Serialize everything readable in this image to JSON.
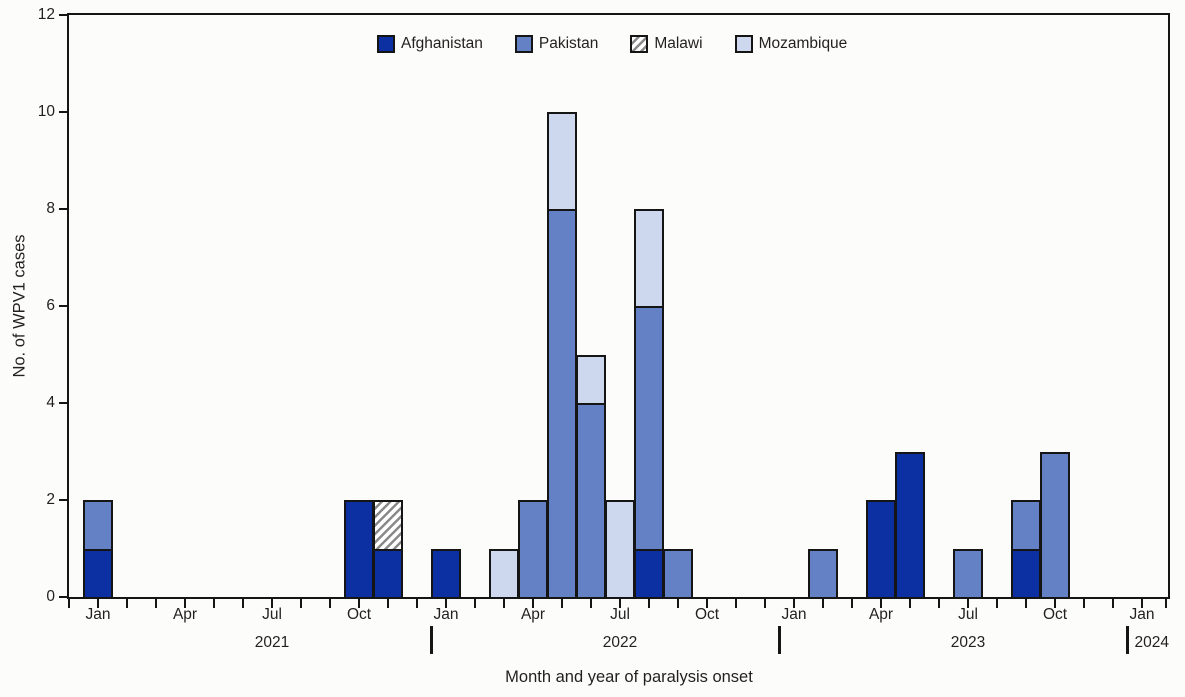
{
  "chart_data": {
    "type": "stacked-bar",
    "ylabel": "No. of WPV1 cases",
    "xlabel": "Month and year of paralysis onset",
    "ylim": [
      0,
      12
    ],
    "yticks": [
      0,
      2,
      4,
      6,
      8,
      10,
      12
    ],
    "grid": false,
    "legend_position": "top-center",
    "background_color": "#fcfdfa",
    "axis_color": "#151515",
    "x_axis": {
      "start_month": "Jan 2021",
      "end_month": "Jan 2024",
      "months_total": 37,
      "month_tick_labels": [
        "Jan",
        "Apr",
        "Jul",
        "Oct"
      ]
    },
    "years": [
      {
        "label": "2021",
        "center_month_index": 6
      },
      {
        "label": "2022",
        "center_month_index": 18
      },
      {
        "label": "2023",
        "center_month_index": 30
      },
      {
        "label": "2024",
        "after_boundary": 36
      }
    ],
    "year_boundaries": [
      12,
      24,
      36
    ],
    "series": [
      {
        "name": "Afghanistan",
        "color": "#0c30a2",
        "pattern": "solid"
      },
      {
        "name": "Pakistan",
        "color": "#6381c4",
        "pattern": "solid"
      },
      {
        "name": "Malawi",
        "color": "#ffffff",
        "pattern": "diagonal-hatch",
        "hatch_color": "#8a8a8a"
      },
      {
        "name": "Mozambique",
        "color": "#cdd7ed",
        "pattern": "solid"
      }
    ],
    "bars": [
      {
        "month": "Jan 2021",
        "month_index": 0,
        "values": {
          "Afghanistan": 1,
          "Pakistan": 1
        }
      },
      {
        "month": "Oct 2021",
        "month_index": 9,
        "values": {
          "Afghanistan": 2
        }
      },
      {
        "month": "Nov 2021",
        "month_index": 10,
        "values": {
          "Afghanistan": 1,
          "Malawi": 1
        }
      },
      {
        "month": "Jan 2022",
        "month_index": 12,
        "values": {
          "Afghanistan": 1
        }
      },
      {
        "month": "Mar 2022",
        "month_index": 14,
        "values": {
          "Mozambique": 1
        }
      },
      {
        "month": "Apr 2022",
        "month_index": 15,
        "values": {
          "Pakistan": 2
        }
      },
      {
        "month": "May 2022",
        "month_index": 16,
        "values": {
          "Pakistan": 8,
          "Mozambique": 2
        }
      },
      {
        "month": "Jun 2022",
        "month_index": 17,
        "values": {
          "Pakistan": 4,
          "Mozambique": 1
        }
      },
      {
        "month": "Jul 2022",
        "month_index": 18,
        "values": {
          "Mozambique": 2
        }
      },
      {
        "month": "Aug 2022",
        "month_index": 19,
        "values": {
          "Afghanistan": 1,
          "Pakistan": 5,
          "Mozambique": 2
        }
      },
      {
        "month": "Sep 2022",
        "month_index": 20,
        "values": {
          "Pakistan": 1
        }
      },
      {
        "month": "Feb 2023",
        "month_index": 25,
        "values": {
          "Pakistan": 1
        }
      },
      {
        "month": "Apr 2023",
        "month_index": 27,
        "values": {
          "Afghanistan": 2
        }
      },
      {
        "month": "May 2023",
        "month_index": 28,
        "values": {
          "Afghanistan": 3
        }
      },
      {
        "month": "Jul 2023",
        "month_index": 30,
        "values": {
          "Pakistan": 1
        }
      },
      {
        "month": "Sep 2023",
        "month_index": 32,
        "values": {
          "Afghanistan": 1,
          "Pakistan": 1
        }
      },
      {
        "month": "Oct 2023",
        "month_index": 33,
        "values": {
          "Pakistan": 3
        }
      }
    ]
  }
}
